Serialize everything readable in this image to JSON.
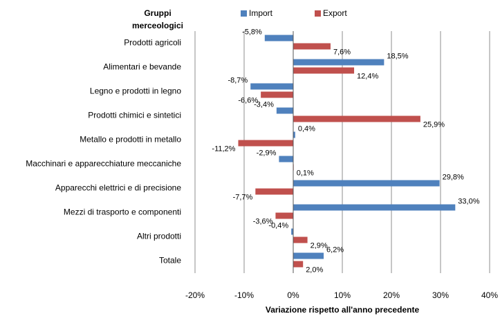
{
  "chart_data": {
    "type": "hbar",
    "category_header": "Gruppi merceologici",
    "x_label": "Variazione rispetto all'anno precedente",
    "categories": [
      "Prodotti agricoli",
      "Alimentari e bevande",
      "Legno e prodotti in legno",
      "Prodotti chimici e sintetici",
      "Metallo e prodotti in metallo",
      "Macchinari e apparecchiature meccaniche",
      "Apparecchi elettrici e di precisione",
      "Mezzi di trasporto e componenti",
      "Altri prodotti",
      "Totale"
    ],
    "series": [
      {
        "name": "Import",
        "color": "#4f81bd",
        "values": [
          -5.8,
          18.5,
          -8.7,
          -3.4,
          0.4,
          -2.9,
          29.8,
          33.0,
          -0.4,
          6.2
        ],
        "value_labels": [
          "-5,8%",
          "18,5%",
          "-8,7%",
          "-3,4%",
          "0,4%",
          "-2,9%",
          "29,8%",
          "33,0%",
          "-0,4%",
          "6,2%"
        ]
      },
      {
        "name": "Export",
        "color": "#c0504d",
        "values": [
          7.6,
          12.4,
          -6.6,
          25.9,
          -11.2,
          0.1,
          -7.7,
          -3.6,
          2.9,
          2.0
        ],
        "value_labels": [
          "7,6%",
          "12,4%",
          "-6,6%",
          "25,9%",
          "-11,2%",
          "0,1%",
          "-7,7%",
          "-3,6%",
          "2,9%",
          "2,0%"
        ]
      }
    ],
    "xlim": [
      -20,
      40
    ],
    "xticks": [
      {
        "value": -20,
        "label": "-20%"
      },
      {
        "value": -10,
        "label": "-10%"
      },
      {
        "value": 0,
        "label": "0%"
      },
      {
        "value": 10,
        "label": "10%"
      },
      {
        "value": 20,
        "label": "20%"
      },
      {
        "value": 30,
        "label": "30%"
      },
      {
        "value": 40,
        "label": "40%"
      }
    ],
    "grid": true,
    "legend": "top"
  }
}
